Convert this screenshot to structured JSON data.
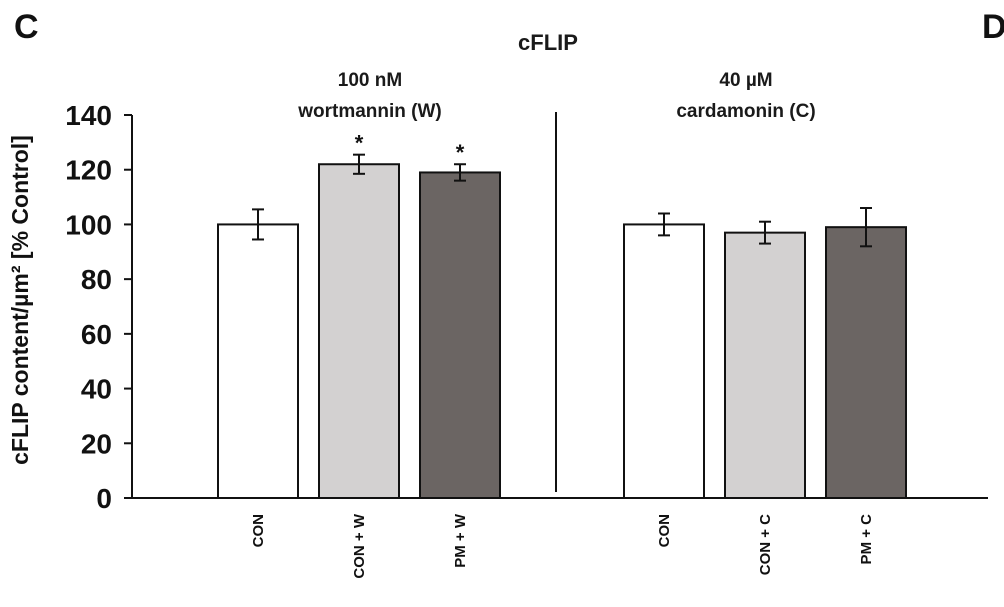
{
  "panel_label": "C",
  "next_panel_label": "D",
  "chart_data": {
    "type": "bar",
    "title": "cFLIP",
    "ylabel": "cFLIP content/µm²  [% Control]",
    "xlabel": "",
    "ylim": [
      0,
      140
    ],
    "yticks": [
      0,
      20,
      40,
      60,
      80,
      100,
      120,
      140
    ],
    "grid": false,
    "groups": [
      {
        "label_lines": [
          "100 nM",
          "wortmannin (W)"
        ],
        "categories": [
          "CON",
          "CON + W",
          "PM + W"
        ],
        "values": [
          100,
          122,
          119
        ],
        "errors": [
          5.5,
          3.5,
          3.0
        ],
        "annotations": [
          "",
          "*",
          "*"
        ],
        "colors": [
          "#ffffff",
          "#d3d1d1",
          "#6b6563"
        ]
      },
      {
        "label_lines": [
          "40 µM",
          "cardamonin (C)"
        ],
        "categories": [
          "CON",
          "CON + C",
          "PM + C"
        ],
        "values": [
          100,
          97,
          99
        ],
        "errors": [
          4.0,
          4.0,
          7.0
        ],
        "annotations": [
          "",
          "",
          ""
        ],
        "colors": [
          "#ffffff",
          "#d3d1d1",
          "#6b6563"
        ]
      }
    ]
  }
}
